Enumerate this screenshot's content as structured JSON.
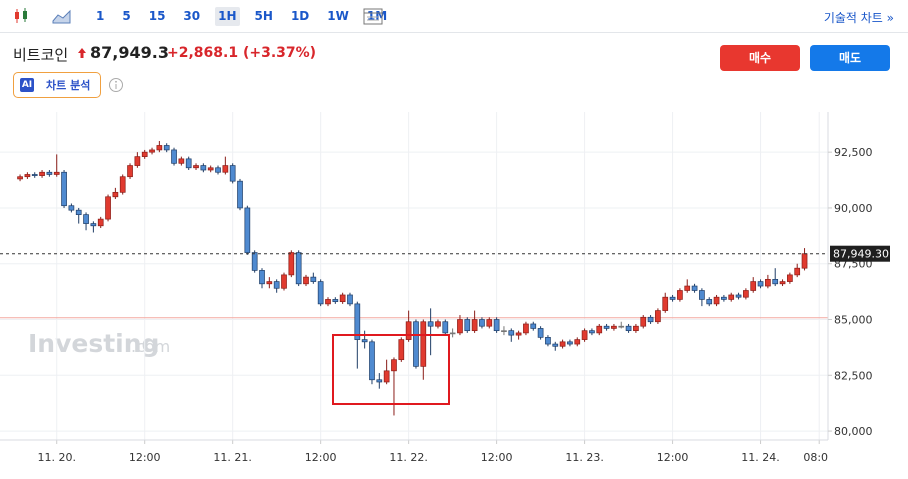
{
  "toolbar": {
    "intervals": [
      "1",
      "5",
      "15",
      "30",
      "1H",
      "5H",
      "1D",
      "1W",
      "1M"
    ],
    "selected": "1H",
    "link": "기술적 차트 »"
  },
  "header": {
    "name": "비트코인",
    "price": "87,949.3",
    "change": "+2,868.1 (+3.37%)"
  },
  "buttons": {
    "buy": "매수",
    "sell": "매도"
  },
  "ai": {
    "badge": "AI",
    "label": "차트 분석"
  },
  "watermark": {
    "brand": "Investing",
    "suffix": ".com"
  },
  "chart_data": {
    "type": "candlestick",
    "up_color": "#e03a2f",
    "down_color": "#4f8ad0",
    "grid": true,
    "xlim": [
      -1.1,
      110.2
    ],
    "ylim": [
      79600,
      94300
    ],
    "yticks": [
      {
        "value": 80000,
        "label": "80,000"
      },
      {
        "value": 82500,
        "label": "82,500"
      },
      {
        "value": 85000,
        "label": "85,000"
      },
      {
        "value": 87500,
        "label": "87,500"
      },
      {
        "value": 90000,
        "label": "90,000"
      },
      {
        "value": 92500,
        "label": "92,500"
      }
    ],
    "xticks": [
      {
        "value": 5,
        "label": "11. 20."
      },
      {
        "value": 17,
        "label": "12:00"
      },
      {
        "value": 29,
        "label": "11. 21."
      },
      {
        "value": 41,
        "label": "12:00"
      },
      {
        "value": 53,
        "label": "11. 22."
      },
      {
        "value": 65,
        "label": "12:00"
      },
      {
        "value": 77,
        "label": "11. 23."
      },
      {
        "value": 89,
        "label": "12:00"
      },
      {
        "value": 101,
        "label": "11. 24."
      },
      {
        "value": 109,
        "label": "08:00"
      }
    ],
    "last_price": 87949.3,
    "last_price_label": "87,949.30",
    "prev_close": 85081.2,
    "open": [
      91300,
      91400,
      91500,
      91450,
      91600,
      91500,
      91600,
      90100,
      89900,
      89700,
      89300,
      89200,
      89500,
      90500,
      90700,
      91400,
      91900,
      92300,
      92500,
      92600,
      92800,
      92600,
      92000,
      92200,
      91800,
      91900,
      91700,
      91800,
      91600,
      91900,
      91200,
      90000,
      88000,
      87200,
      86600,
      86700,
      86400,
      87000,
      88000,
      86600,
      86900,
      86700,
      85700,
      85900,
      85800,
      86100,
      85700,
      84100,
      84000,
      82300,
      82200,
      82700,
      83200,
      84100,
      84900,
      82900,
      84900,
      84700,
      84900,
      84400,
      84400,
      85000,
      84500,
      85000,
      84700,
      85000,
      84500,
      84500,
      84300,
      84400,
      84800,
      84600,
      84200,
      83900,
      83800,
      84000,
      83900,
      84100,
      84500,
      84400,
      84700,
      84600,
      84700,
      84700,
      84500,
      84700,
      85100,
      84900,
      85400,
      86000,
      85900,
      86300,
      86500,
      86300,
      85900,
      85700,
      86000,
      85900,
      86100,
      86000,
      86300,
      86700,
      86500,
      86800,
      86600,
      86700,
      87000,
      87300
    ],
    "high": [
      91500,
      91600,
      91600,
      91700,
      91700,
      92400,
      91700,
      90200,
      90000,
      89800,
      89400,
      89600,
      90600,
      90900,
      91500,
      92000,
      92500,
      92600,
      92700,
      93000,
      92900,
      92700,
      92300,
      92300,
      92000,
      92000,
      91900,
      91900,
      92300,
      92000,
      91300,
      90100,
      88100,
      87300,
      86900,
      86800,
      87100,
      88100,
      88100,
      87000,
      87100,
      86800,
      86000,
      86000,
      86200,
      86200,
      85800,
      84500,
      84100,
      82600,
      83200,
      83300,
      84200,
      85400,
      85000,
      85000,
      85500,
      85000,
      85000,
      84600,
      85200,
      85100,
      85400,
      85100,
      85100,
      85100,
      84700,
      84600,
      84500,
      84900,
      84900,
      84700,
      84300,
      84000,
      84100,
      84100,
      84200,
      84600,
      84600,
      84800,
      84800,
      84800,
      84900,
      84800,
      84800,
      85200,
      85200,
      85500,
      86200,
      86100,
      86400,
      86800,
      86600,
      86400,
      86000,
      86100,
      86100,
      86200,
      86200,
      86400,
      86900,
      86800,
      87000,
      87300,
      86800,
      87100,
      87500,
      88200
    ],
    "low": [
      91200,
      91300,
      91350,
      91350,
      91400,
      91400,
      90000,
      89800,
      89300,
      89000,
      88900,
      89100,
      89400,
      90400,
      90600,
      91300,
      91800,
      92200,
      92400,
      92500,
      92500,
      91900,
      91900,
      91700,
      91700,
      91600,
      91600,
      91500,
      91500,
      91100,
      89900,
      87900,
      87100,
      86400,
      86400,
      86200,
      86300,
      86900,
      86500,
      86500,
      86600,
      85600,
      85600,
      85700,
      85700,
      85600,
      82800,
      83700,
      82100,
      81900,
      82100,
      80700,
      83100,
      84000,
      82800,
      82300,
      83400,
      84600,
      84300,
      84200,
      84300,
      84400,
      84400,
      84600,
      84600,
      84400,
      84300,
      84000,
      84100,
      84300,
      84500,
      84100,
      83800,
      83600,
      83700,
      83800,
      83800,
      84000,
      84300,
      84300,
      84500,
      84500,
      84600,
      84400,
      84400,
      84600,
      84800,
      84800,
      85300,
      85800,
      85800,
      86200,
      86200,
      85600,
      85600,
      85600,
      85800,
      85800,
      85900,
      85900,
      86200,
      86400,
      86400,
      86500,
      86500,
      86600,
      86900,
      87200
    ],
    "close": [
      91400,
      91500,
      91450,
      91600,
      91500,
      91600,
      90100,
      89900,
      89700,
      89300,
      89200,
      89500,
      90500,
      90700,
      91400,
      91900,
      92300,
      92500,
      92600,
      92800,
      92600,
      92000,
      92200,
      91800,
      91900,
      91700,
      91800,
      91600,
      91900,
      91200,
      90000,
      88000,
      87200,
      86600,
      86700,
      86400,
      87000,
      88000,
      86600,
      86900,
      86700,
      85700,
      85900,
      85800,
      86100,
      85700,
      84100,
      84000,
      82300,
      82200,
      82700,
      83200,
      84100,
      84900,
      82900,
      84900,
      84700,
      84900,
      84400,
      84400,
      85000,
      84500,
      85000,
      84700,
      85000,
      84500,
      84500,
      84300,
      84400,
      84800,
      84600,
      84200,
      83900,
      83800,
      84000,
      83900,
      84100,
      84500,
      84400,
      84700,
      84600,
      84700,
      84700,
      84500,
      84700,
      85100,
      84900,
      85400,
      86000,
      85900,
      86300,
      86500,
      86300,
      85900,
      85700,
      86000,
      85900,
      86100,
      86000,
      86300,
      86700,
      86500,
      86800,
      86600,
      86700,
      87000,
      87300,
      87949.3
    ]
  }
}
